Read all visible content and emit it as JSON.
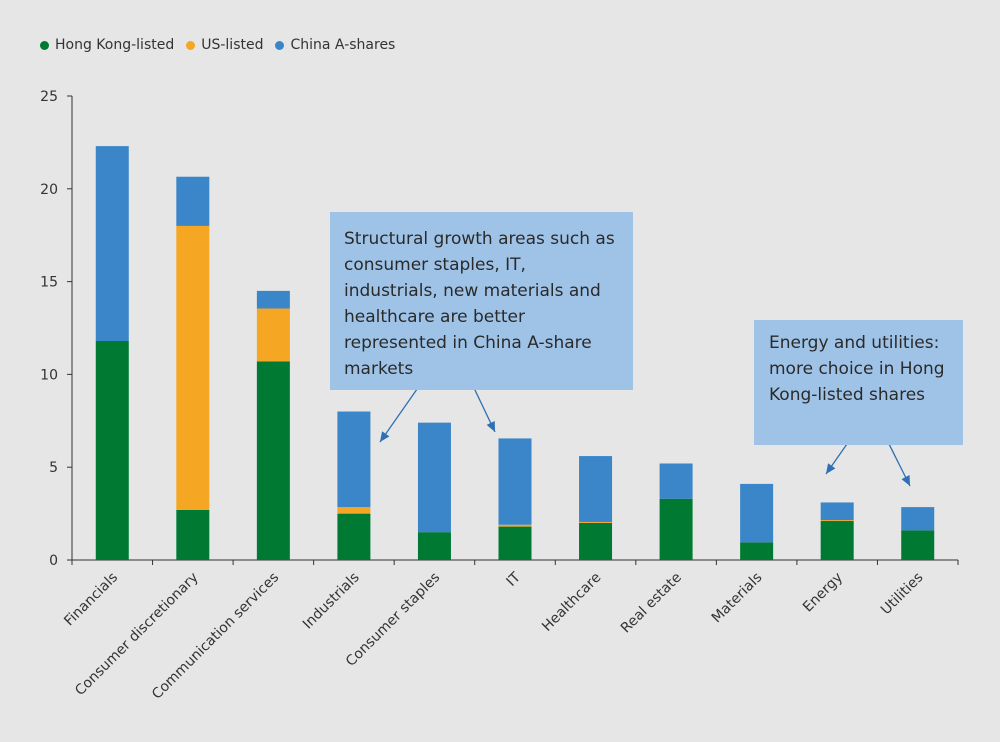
{
  "legend": [
    {
      "label": "Hong Kong-listed",
      "color": "#007a33"
    },
    {
      "label": "US-listed",
      "color": "#f5a623"
    },
    {
      "label": "China A-shares",
      "color": "#3a86c8"
    }
  ],
  "annotations": [
    {
      "text": "Structural growth areas such as consumer staples, IT, industrials, new materials and healthcare are better represented in China A-share markets"
    },
    {
      "text": "Energy and utilities: more choice in Hong Kong-listed shares"
    }
  ],
  "chart_data": {
    "type": "bar",
    "stacked": true,
    "categories": [
      "Financials",
      "Consumer discretionary",
      "Communication services",
      "Industrials",
      "Consumer staples",
      "IT",
      "Healthcare",
      "Real estate",
      "Materials",
      "Energy",
      "Utilities"
    ],
    "series": [
      {
        "name": "Hong Kong-listed",
        "color": "#007a33",
        "values": [
          11.8,
          2.7,
          10.7,
          2.5,
          1.5,
          1.8,
          2.0,
          3.3,
          0.95,
          2.1,
          1.6
        ]
      },
      {
        "name": "US-listed",
        "color": "#f5a623",
        "values": [
          0,
          15.3,
          2.85,
          0.35,
          0,
          0.1,
          0.05,
          0,
          0,
          0.05,
          0
        ]
      },
      {
        "name": "China A-shares",
        "color": "#3a86c8",
        "values": [
          10.5,
          2.65,
          0.95,
          5.15,
          5.9,
          4.65,
          3.55,
          1.9,
          3.15,
          0.95,
          1.25
        ]
      }
    ],
    "ylim": [
      0,
      25
    ],
    "yticks": [
      0,
      5,
      10,
      15,
      20,
      25
    ],
    "title": "",
    "xlabel": "",
    "ylabel": ""
  }
}
